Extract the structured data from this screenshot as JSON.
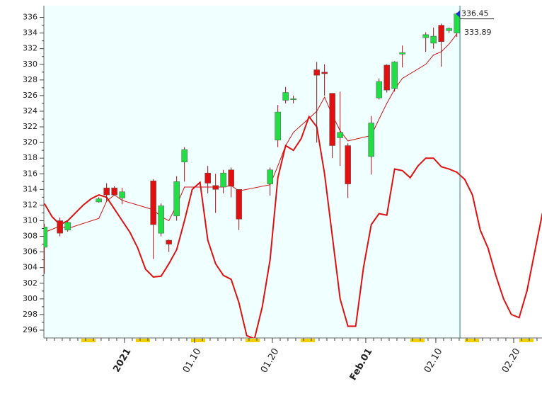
{
  "chart_data": {
    "type": "candlestick",
    "xlim": [
      -10.36,
      53.64
    ],
    "ylim": [
      295,
      337.5
    ],
    "yticks": [
      296,
      298,
      300,
      302,
      304,
      306,
      308,
      310,
      312,
      314,
      316,
      318,
      320,
      322,
      324,
      326,
      328,
      330,
      332,
      334,
      336
    ],
    "xticks": [
      {
        "value": 0,
        "label": "2021",
        "color": "#8b1a1a"
      },
      {
        "value": 9,
        "label": "01.10",
        "color": "#555555"
      },
      {
        "value": 19,
        "label": "01.20",
        "color": "#555555"
      },
      {
        "value": 31,
        "label": "Feb.01",
        "color": "#8b1a1a"
      },
      {
        "value": 40,
        "label": "02.10",
        "color": "#555555"
      },
      {
        "value": 50,
        "label": "02.20",
        "color": "#555555"
      }
    ],
    "x": [
      -10.3,
      -8.3,
      -7.3,
      -3.3,
      -2.3,
      -1.3,
      -0.3,
      3.7,
      4.7,
      5.7,
      6.7,
      7.7,
      10.7,
      11.7,
      12.7,
      13.7,
      14.7,
      18.7,
      19.7,
      20.7,
      21.7,
      24.7,
      25.7,
      26.7,
      27.7,
      28.7,
      31.7,
      32.7,
      33.7,
      34.7,
      35.7,
      38.7,
      39.7,
      40.7,
      41.7,
      42.7
    ],
    "open": [
      306.6,
      310,
      308.8,
      312.4,
      314.2,
      314.2,
      312.9,
      315.1,
      308.4,
      307.5,
      310.6,
      317.5,
      316.1,
      314.5,
      314.3,
      316.5,
      314,
      314.7,
      320.3,
      325.4,
      325.5,
      329.3,
      329,
      326.3,
      320.6,
      319.6,
      318.2,
      325.7,
      329.9,
      326.9,
      331.3,
      333.4,
      332.7,
      335,
      334.3,
      334
    ],
    "high": [
      309.6,
      310.4,
      309.9,
      313,
      314.8,
      314.4,
      314.2,
      315.3,
      312.2,
      307.6,
      315.7,
      319.4,
      317,
      316,
      316.5,
      316.8,
      314,
      316.8,
      324.8,
      327.1,
      326,
      330.3,
      330,
      326.3,
      326.5,
      319.9,
      323.4,
      328.2,
      330,
      330.4,
      332.4,
      334.1,
      334.7,
      335.2,
      334.7,
      336.6
    ],
    "low": [
      303.2,
      308,
      308.6,
      312.3,
      312.5,
      313.2,
      312.1,
      305.1,
      308,
      306,
      310,
      315,
      313.5,
      311,
      313.5,
      313,
      308.8,
      313.2,
      319.4,
      325,
      325,
      320,
      326,
      318,
      317,
      312.9,
      315.9,
      325.5,
      326.4,
      326.5,
      329.6,
      331.6,
      332,
      329.7,
      334,
      333.5
    ],
    "close": [
      309.2,
      308.4,
      309.8,
      312.8,
      313.3,
      313.3,
      313.7,
      309.5,
      311.9,
      307,
      315,
      319.1,
      314.8,
      314,
      316.1,
      314.4,
      310.2,
      316.5,
      323.9,
      326.4,
      325.6,
      328.6,
      328.8,
      319.6,
      321.3,
      314.7,
      322.5,
      327.8,
      326.7,
      330.3,
      331.5,
      333.8,
      333.6,
      332.9,
      334.6,
      336.45
    ],
    "up_color": "#22dd44",
    "down_color": "#e01010",
    "wick_color": "#a01010",
    "moving_average": {
      "color": "#d01010",
      "width": 1,
      "values": [
        308.5,
        309.3,
        309,
        310.3,
        312.5,
        313.3,
        312.6,
        311.4,
        310.5,
        310,
        312,
        314.3,
        314.3,
        314.3,
        314.3,
        314.5,
        313.8,
        314.6,
        317,
        319.6,
        321.3,
        324,
        325.8,
        323.5,
        321.5,
        320.2,
        320.9,
        323,
        325,
        326.8,
        328.2,
        330,
        331.2,
        331.6,
        332.6,
        333.89
      ]
    },
    "oscillator": {
      "color": "#e01010",
      "width": 2,
      "x": [
        -10.3,
        -9.3,
        -8.3,
        -7.3,
        -6.3,
        -5.3,
        -4.3,
        -3.3,
        -2.3,
        -1.3,
        -0.3,
        0.7,
        1.7,
        2.7,
        3.7,
        4.7,
        5.7,
        6.7,
        7.7,
        8.7,
        9.7,
        10.7,
        11.7,
        12.7,
        13.7,
        14.7,
        15.7,
        16.7,
        17.7,
        18.7,
        19.7,
        20.7,
        21.7,
        22.7,
        23.7,
        24.7,
        25.7,
        26.7,
        27.7,
        28.7,
        29.7,
        30.7,
        31.7,
        32.7,
        33.7,
        34.7,
        35.7,
        36.7,
        37.7,
        38.7,
        39.7,
        40.7,
        41.7,
        42.7,
        43.7,
        44.7,
        45.7,
        46.7,
        47.7,
        48.7,
        49.7,
        50.7,
        51.7,
        52.7,
        53.7
      ],
      "values": [
        312.2,
        310.5,
        309.5,
        310,
        311,
        312,
        312.8,
        313.3,
        313,
        311.5,
        310,
        308.5,
        306.5,
        303.8,
        302.8,
        302.9,
        304.5,
        306.3,
        310,
        314,
        314.9,
        307.5,
        304.5,
        303,
        302.5,
        299.5,
        295.3,
        294.9,
        299,
        305,
        315.5,
        319.6,
        319,
        320.5,
        323.3,
        322,
        316,
        308,
        300,
        296.5,
        296.5,
        304,
        309.5,
        310.9,
        310.7,
        316.6,
        316.4,
        315.5,
        317,
        318,
        318,
        316.9,
        316.6,
        316.2,
        315.3,
        313.3,
        308.8,
        306.5,
        303,
        300,
        298,
        297.6,
        301,
        306,
        311
      ]
    },
    "cursor_x": 43.1,
    "cursor_color": "#2a7a8a",
    "background": "#f0ffff",
    "price_labels": [
      336.45,
      333.89
    ]
  }
}
